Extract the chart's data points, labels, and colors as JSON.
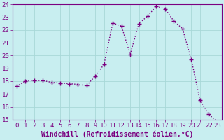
{
  "x": [
    0,
    1,
    2,
    3,
    4,
    5,
    6,
    7,
    8,
    9,
    10,
    11,
    12,
    13,
    14,
    15,
    16,
    17,
    18,
    19,
    20,
    21,
    22,
    23
  ],
  "y": [
    17.6,
    18.0,
    18.05,
    18.05,
    17.9,
    17.85,
    17.8,
    17.75,
    17.65,
    18.4,
    19.3,
    22.55,
    22.3,
    20.1,
    22.5,
    23.1,
    23.85,
    23.65,
    22.7,
    22.1,
    19.7,
    16.5,
    15.4,
    14.85
  ],
  "line_color": "#7b0080",
  "bg_color": "#c8eef0",
  "grid_color": "#a8d8d8",
  "xlabel": "Windchill (Refroidissement éolien,°C)",
  "ylim": [
    15,
    24
  ],
  "xlim": [
    -0.5,
    23.5
  ],
  "yticks": [
    15,
    16,
    17,
    18,
    19,
    20,
    21,
    22,
    23,
    24
  ],
  "xticks": [
    0,
    1,
    2,
    3,
    4,
    5,
    6,
    7,
    8,
    9,
    10,
    11,
    12,
    13,
    14,
    15,
    16,
    17,
    18,
    19,
    20,
    21,
    22,
    23
  ],
  "tick_fontsize": 6.5,
  "xlabel_fontsize": 7,
  "line_width": 1.0,
  "marker_size": 4
}
